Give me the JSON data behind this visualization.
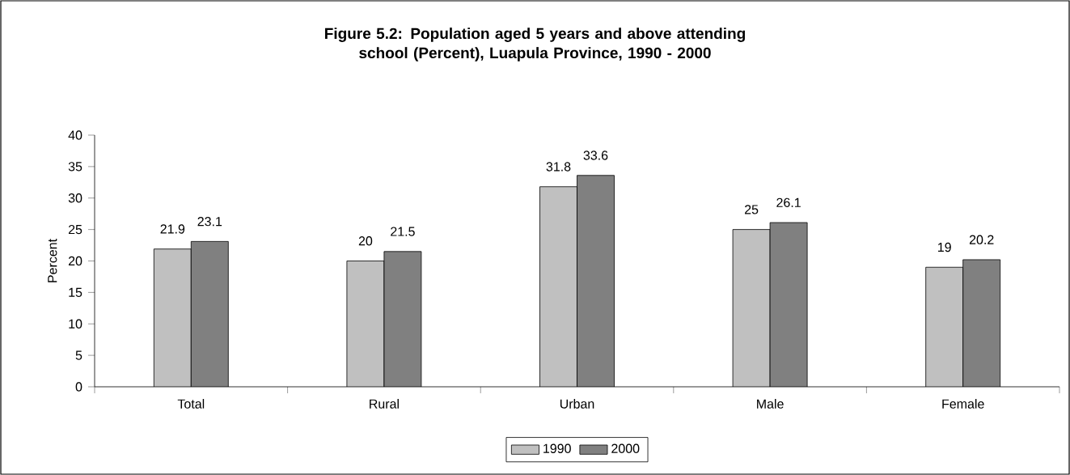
{
  "chart_data": {
    "type": "bar",
    "title": "Figure 5.2: Population aged 5 years and above attending school (Percent), Luapula Province, 1990 - 2000",
    "ylabel": "Percent",
    "categories": [
      "Total",
      "Rural",
      "Urban",
      "Male",
      "Female"
    ],
    "series": [
      {
        "name": "1990",
        "color": "#c0c0c0",
        "values": [
          21.9,
          20,
          31.8,
          25,
          19
        ]
      },
      {
        "name": "2000",
        "color": "#808080",
        "values": [
          23.1,
          21.5,
          33.6,
          26.1,
          20.2
        ]
      }
    ],
    "ylim": [
      0,
      40
    ],
    "yticks": [
      0,
      5,
      10,
      15,
      20,
      25,
      30,
      35,
      40
    ],
    "legend": "bottom",
    "data_labels": true
  }
}
